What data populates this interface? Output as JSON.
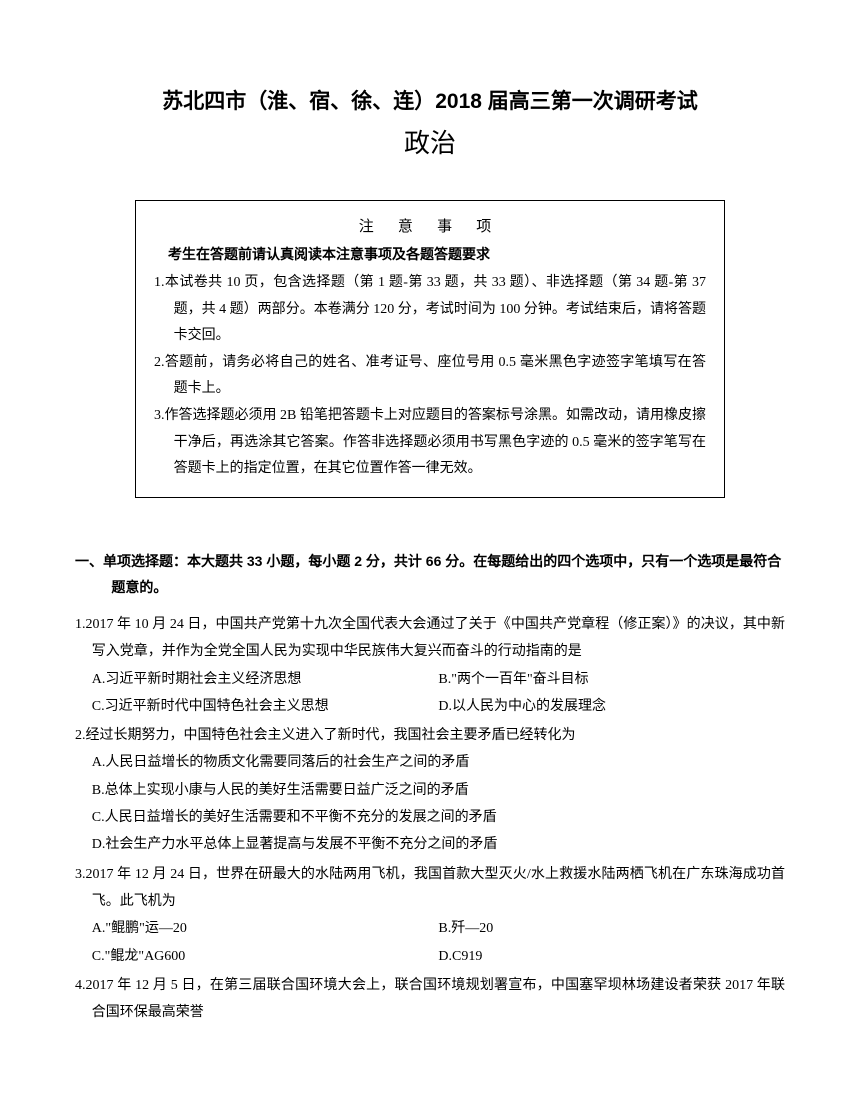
{
  "title_main": "苏北四市（淮、宿、徐、连）2018 届高三第一次调研考试",
  "title_sub": "政治",
  "notice": {
    "title": "注  意  事  项",
    "subtitle": "考生在答题前请认真阅读本注意事项及各题答题要求",
    "items": [
      "1.本试卷共 10 页，包含选择题（第 1 题-第 33 题，共 33 题）、非选择题（第 34 题-第 37 题，共 4 题）两部分。本卷满分 120 分，考试时间为 100 分钟。考试结束后，请将答题卡交回。",
      "2.答题前，请务必将自己的姓名、准考证号、座位号用 0.5 毫米黑色字迹签字笔填写在答题卡上。",
      "3.作答选择题必须用 2B 铅笔把答题卡上对应题目的答案标号涂黑。如需改动，请用橡皮擦干净后，再选涂其它答案。作答非选择题必须用书写黑色字迹的 0.5 毫米的签字笔写在答题卡上的指定位置，在其它位置作答一律无效。"
    ]
  },
  "section_header": "一、单项选择题：本大题共 33 小题，每小题 2 分，共计 66 分。在每题给出的四个选项中，只有一个选项是最符合题意的。",
  "questions": [
    {
      "text": "1.2017 年 10 月 24 日，中国共产党第十九次全国代表大会通过了关于《中国共产党章程（修正案）》的决议，其中新写入党章，并作为全党全国人民为实现中华民族伟大复兴而奋斗的行动指南的是",
      "layout": "two-col",
      "options": [
        [
          "A.习近平新时期社会主义经济思想",
          "B.\"两个一百年\"奋斗目标"
        ],
        [
          "C.习近平新时代中国特色社会主义思想",
          "D.以人民为中心的发展理念"
        ]
      ]
    },
    {
      "text": "2.经过长期努力，中国特色社会主义进入了新时代，我国社会主要矛盾已经转化为",
      "layout": "one-col",
      "options": [
        "A.人民日益增长的物质文化需要同落后的社会生产之间的矛盾",
        "B.总体上实现小康与人民的美好生活需要日益广泛之间的矛盾",
        "C.人民日益增长的美好生活需要和不平衡不充分的发展之间的矛盾",
        "D.社会生产力水平总体上显著提高与发展不平衡不充分之间的矛盾"
      ]
    },
    {
      "text": "3.2017 年 12 月 24 日，世界在研最大的水陆两用飞机，我国首款大型灭火/水上救援水陆两栖飞机在广东珠海成功首飞。此飞机为",
      "layout": "two-col",
      "options": [
        [
          "A.\"鲲鹏\"运—20",
          "B.歼—20"
        ],
        [
          "C.\"鲲龙\"AG600",
          "D.C919"
        ]
      ]
    },
    {
      "text": "4.2017 年 12 月 5 日，在第三届联合国环境大会上，联合国环境规划署宣布，中国塞罕坝林场建设者荣获 2017 年联合国环保最高荣誉",
      "layout": "none",
      "options": []
    }
  ]
}
